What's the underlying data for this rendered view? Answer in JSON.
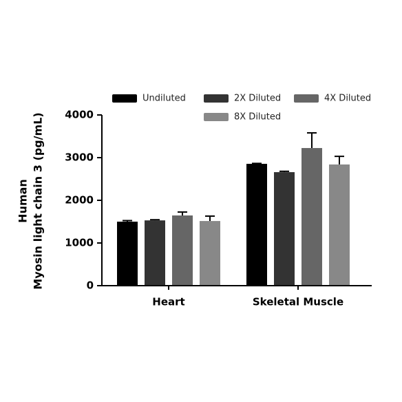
{
  "chart_data": {
    "type": "bar",
    "y_label_lines": [
      "Human",
      "Myosin light chain 3 (pg/mL)"
    ],
    "categories": [
      "Heart",
      "Skeletal Muscle"
    ],
    "series": [
      {
        "name": "Undiluted",
        "color": "#000000",
        "values": [
          1500,
          2855
        ],
        "errors": [
          25,
          10
        ]
      },
      {
        "name": "2X Diluted",
        "color": "#333333",
        "values": [
          1530,
          2660
        ],
        "errors": [
          15,
          20
        ]
      },
      {
        "name": "4X Diluted",
        "color": "#666666",
        "values": [
          1645,
          3225
        ],
        "errors": [
          80,
          355
        ]
      },
      {
        "name": "8X Diluted",
        "color": "#888888",
        "values": [
          1515,
          2840
        ],
        "errors": [
          115,
          190
        ]
      }
    ],
    "ylim": [
      0,
      4000
    ],
    "yticks": [
      0,
      1000,
      2000,
      3000,
      4000
    ]
  }
}
